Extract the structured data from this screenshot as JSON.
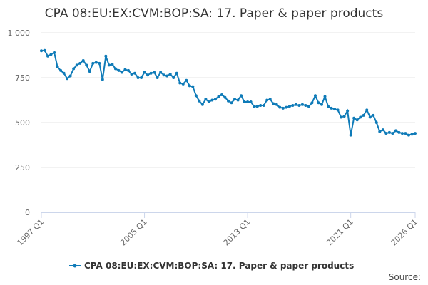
{
  "chart_data": {
    "type": "line",
    "title": "CPA 08:EU:EX:CVM:BOP:SA: 17. Paper & paper products",
    "source": "Source:",
    "categories": [
      "1997 Q1",
      null,
      null,
      null,
      null,
      null,
      null,
      null,
      null,
      null,
      null,
      null,
      null,
      null,
      null,
      null,
      null,
      null,
      null,
      null,
      null,
      null,
      null,
      null,
      null,
      null,
      null,
      null,
      null,
      null,
      null,
      null,
      "2005 Q1",
      null,
      null,
      null,
      null,
      null,
      null,
      null,
      null,
      null,
      null,
      null,
      null,
      null,
      null,
      null,
      null,
      null,
      null,
      null,
      null,
      null,
      null,
      null,
      null,
      null,
      null,
      null,
      null,
      null,
      null,
      null,
      "2013 Q1",
      null,
      null,
      null,
      null,
      null,
      null,
      null,
      null,
      null,
      null,
      null,
      null,
      null,
      null,
      null,
      null,
      null,
      null,
      null,
      null,
      null,
      null,
      null,
      null,
      null,
      null,
      null,
      null,
      null,
      null,
      null,
      "2021 Q1",
      null,
      null,
      null,
      null,
      null,
      null,
      null,
      null,
      null,
      null,
      null,
      null,
      null,
      null,
      null,
      null,
      null,
      null,
      null,
      "2026 Q1"
    ],
    "series": [
      {
        "name": "CPA 08:EU:EX:CVM:BOP:SA: 17. Paper & paper products",
        "color": "#0f7bb8",
        "values": [
          900,
          902,
          870,
          880,
          890,
          810,
          790,
          775,
          745,
          760,
          800,
          820,
          830,
          845,
          820,
          785,
          830,
          835,
          830,
          740,
          870,
          820,
          825,
          800,
          790,
          780,
          795,
          790,
          770,
          775,
          750,
          750,
          780,
          765,
          775,
          780,
          750,
          780,
          765,
          760,
          770,
          750,
          775,
          720,
          715,
          735,
          705,
          700,
          650,
          620,
          600,
          630,
          615,
          625,
          630,
          645,
          655,
          640,
          620,
          610,
          630,
          625,
          650,
          615,
          615,
          615,
          590,
          590,
          595,
          595,
          625,
          630,
          605,
          600,
          585,
          580,
          585,
          590,
          595,
          600,
          595,
          600,
          595,
          590,
          610,
          650,
          610,
          600,
          645,
          590,
          580,
          575,
          570,
          530,
          535,
          565,
          430,
          525,
          515,
          530,
          540,
          570,
          530,
          540,
          500,
          450,
          460,
          440,
          445,
          440,
          455,
          445,
          440,
          440,
          430,
          435,
          440
        ]
      }
    ],
    "ylim": [
      0,
      1000
    ],
    "yticks": [
      0,
      250,
      500,
      750,
      {
        "value": 1000,
        "label": "1 000"
      }
    ],
    "grid": true
  }
}
